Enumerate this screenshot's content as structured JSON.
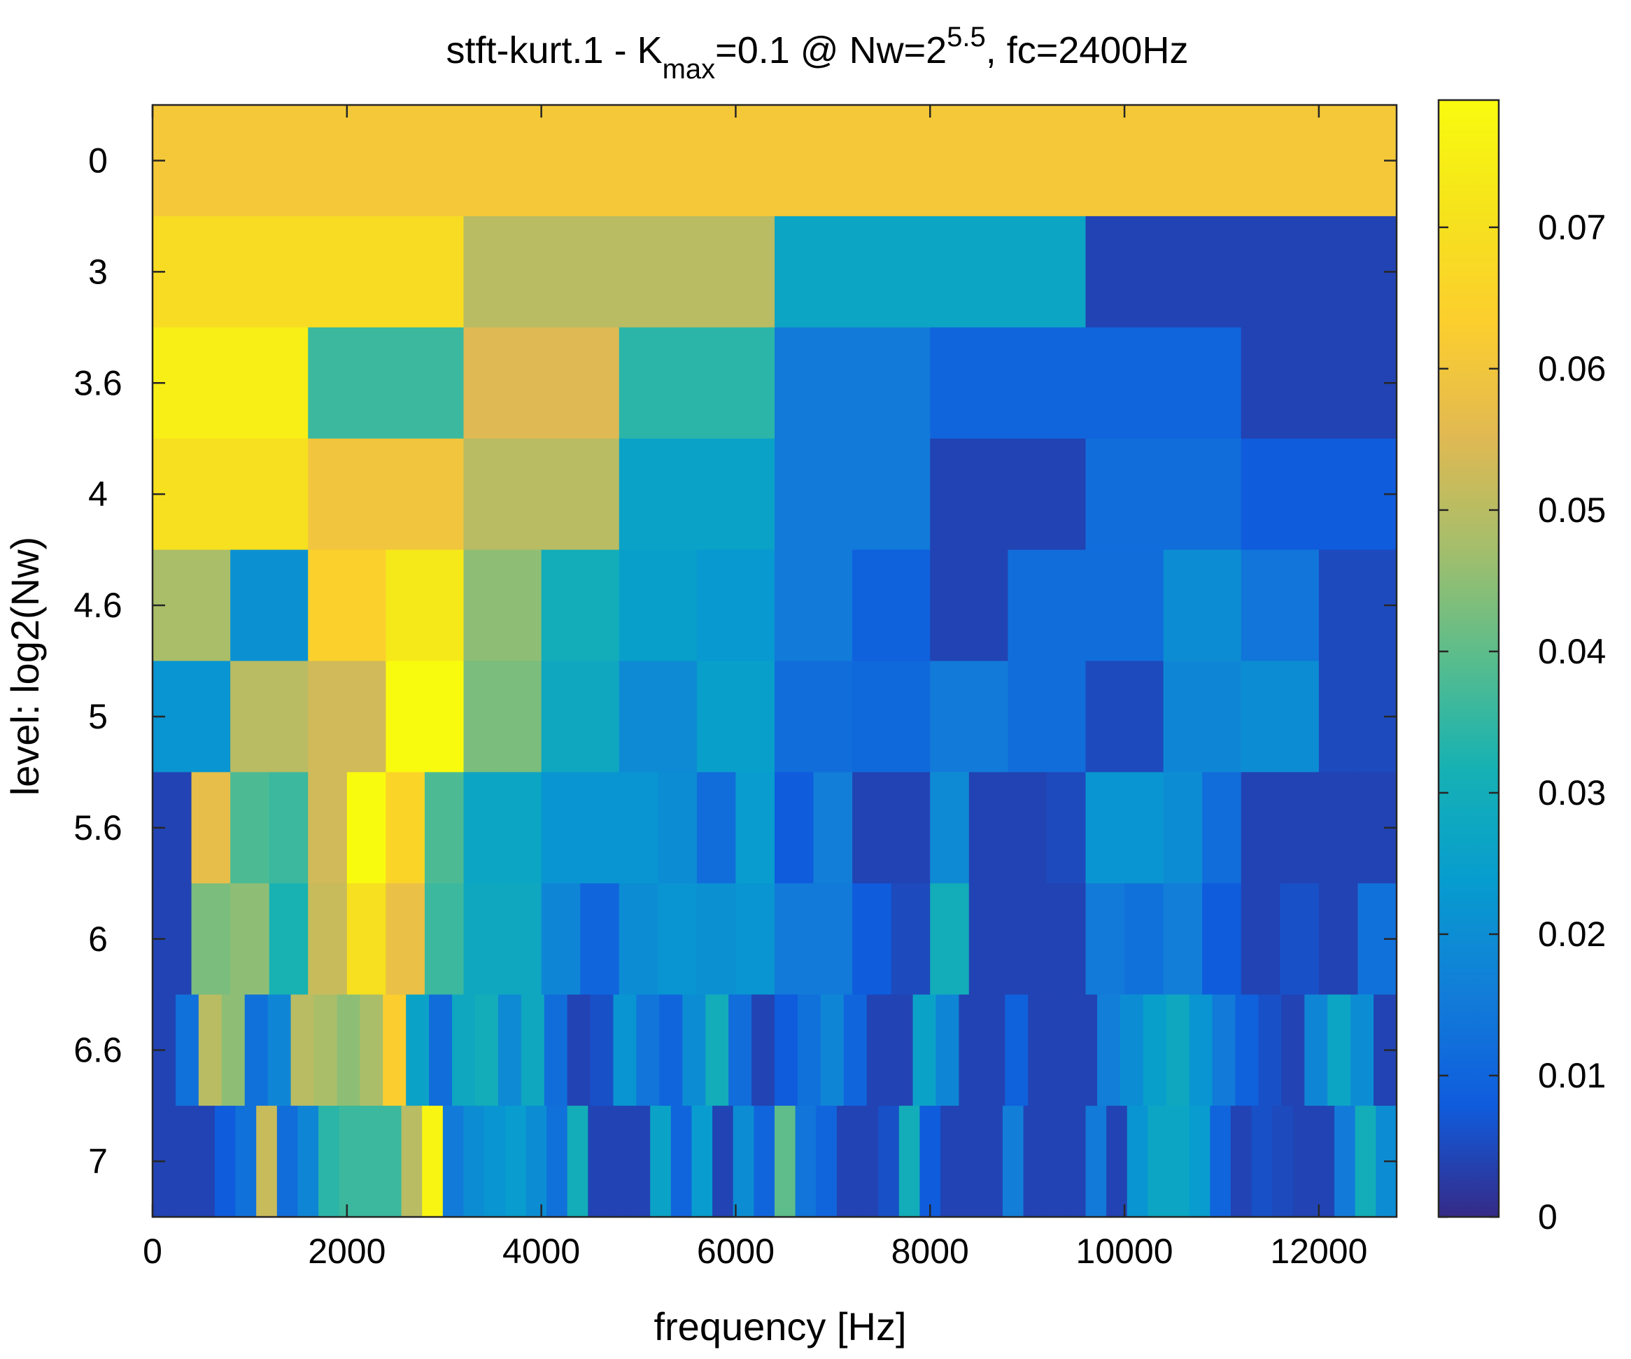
{
  "chart_data": {
    "type": "heatmap",
    "title": {
      "prefix": "stft-kurt.1 - K",
      "k_subscript": "max",
      "mid": "=0.1 @ Nw=2",
      "nw_exponent": "5.5",
      "suffix": ", fc=2400Hz"
    },
    "xlabel": "frequency [Hz]",
    "ylabel": "level: log2(Nw)",
    "xlim": [
      0,
      12800
    ],
    "x_ticks": [
      0,
      2000,
      4000,
      6000,
      8000,
      10000,
      12000
    ],
    "x_tick_labels": [
      "0",
      "2000",
      "4000",
      "6000",
      "8000",
      "10000",
      "12000"
    ],
    "levels": [
      "0",
      "3",
      "3.6",
      "4",
      "4.6",
      "5",
      "5.6",
      "6",
      "6.6",
      "7"
    ],
    "colorbar": {
      "min": 0,
      "max": 0.079,
      "ticks": [
        0,
        0.01,
        0.02,
        0.03,
        0.04,
        0.05,
        0.06,
        0.07
      ],
      "tick_labels": [
        "0",
        "0.01",
        "0.02",
        "0.03",
        "0.04",
        "0.05",
        "0.06",
        "0.07"
      ],
      "colormap": "parula"
    },
    "rows": [
      {
        "level": "0",
        "values": [
          0.061
        ]
      },
      {
        "level": "3",
        "values": [
          0.068,
          0.05,
          0.027,
          0.004
        ]
      },
      {
        "level": "3.6",
        "values": [
          0.075,
          0.036,
          0.055,
          0.034,
          0.015,
          0.01,
          0.01,
          0.004
        ]
      },
      {
        "level": "4",
        "values": [
          0.07,
          0.06,
          0.05,
          0.026,
          0.015,
          0.004,
          0.012,
          0.008
        ]
      },
      {
        "level": "4.6",
        "values": [
          0.048,
          0.021,
          0.064,
          0.073,
          0.045,
          0.03,
          0.025,
          0.023,
          0.015,
          0.009,
          0.004,
          0.012,
          0.012,
          0.02,
          0.014,
          0.005
        ]
      },
      {
        "level": "5",
        "values": [
          0.022,
          0.05,
          0.053,
          0.079,
          0.043,
          0.028,
          0.019,
          0.025,
          0.012,
          0.011,
          0.015,
          0.012,
          0.005,
          0.018,
          0.02,
          0.005
        ]
      },
      {
        "level": "5.6",
        "values": [
          0.004,
          0.057,
          0.038,
          0.036,
          0.053,
          0.079,
          0.066,
          0.038,
          0.027,
          0.027,
          0.022,
          0.022,
          0.022,
          0.02,
          0.012,
          0.024,
          0.008,
          0.016,
          0.004,
          0.004,
          0.019,
          0.004,
          0.004,
          0.005,
          0.022,
          0.022,
          0.02,
          0.012,
          0.004,
          0.004,
          0.004,
          0.004
        ]
      },
      {
        "level": "6",
        "values": [
          0.004,
          0.043,
          0.045,
          0.032,
          0.052,
          0.07,
          0.058,
          0.036,
          0.028,
          0.028,
          0.018,
          0.01,
          0.02,
          0.022,
          0.021,
          0.022,
          0.015,
          0.015,
          0.008,
          0.005,
          0.03,
          0.004,
          0.004,
          0.004,
          0.015,
          0.013,
          0.016,
          0.008,
          0.004,
          0.006,
          0.004,
          0.013
        ]
      }
    ],
    "fine_rows": [
      {
        "level": "6.6",
        "values": [
          0.004,
          0.013,
          0.05,
          0.045,
          0.013,
          0.018,
          0.05,
          0.048,
          0.045,
          0.048,
          0.063,
          0.026,
          0.012,
          0.028,
          0.03,
          0.019,
          0.028,
          0.012,
          0.004,
          0.006,
          0.022,
          0.014,
          0.01,
          0.02,
          0.03,
          0.012,
          0.004,
          0.008,
          0.013,
          0.018,
          0.01,
          0.004,
          0.004,
          0.026,
          0.018,
          0.004,
          0.004,
          0.009,
          0.004,
          0.004,
          0.004,
          0.016,
          0.02,
          0.025,
          0.028,
          0.022,
          0.015,
          0.009,
          0.006,
          0.004,
          0.018,
          0.027,
          0.02,
          0.004
        ]
      },
      {
        "level": "7",
        "values": [
          0.004,
          0.004,
          0.004,
          0.008,
          0.013,
          0.052,
          0.012,
          0.018,
          0.034,
          0.036,
          0.036,
          0.036,
          0.05,
          0.077,
          0.015,
          0.02,
          0.022,
          0.024,
          0.02,
          0.013,
          0.03,
          0.004,
          0.004,
          0.004,
          0.026,
          0.01,
          0.024,
          0.004,
          0.02,
          0.01,
          0.04,
          0.014,
          0.01,
          0.004,
          0.004,
          0.006,
          0.03,
          0.008,
          0.004,
          0.004,
          0.004,
          0.016,
          0.004,
          0.004,
          0.004,
          0.015,
          0.004,
          0.022,
          0.027,
          0.027,
          0.024,
          0.01,
          0.004,
          0.006,
          0.005,
          0.004,
          0.004,
          0.015,
          0.03,
          0.02
        ]
      }
    ],
    "grid": false,
    "legend": "colorbar-right"
  }
}
